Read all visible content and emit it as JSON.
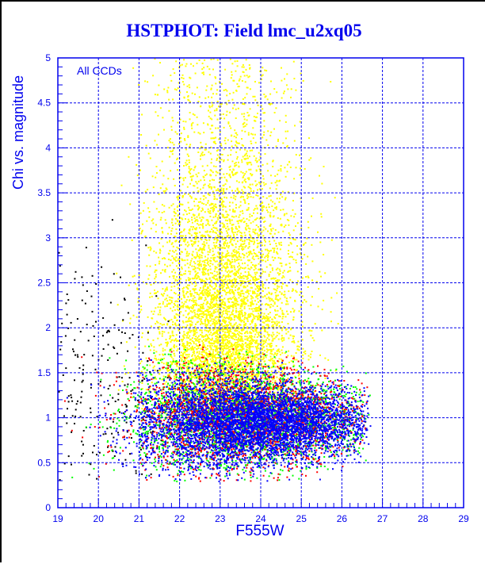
{
  "chart_data": {
    "type": "scatter",
    "title": "HSTPHOT: Field lmc_u2xq05",
    "xlabel": "F555W",
    "ylabel": "Chi vs. magnitude",
    "annotation": "All CCDs",
    "xlim": [
      19,
      29
    ],
    "ylim": [
      0,
      5
    ],
    "xticks": [
      "19",
      "20",
      "21",
      "22",
      "23",
      "24",
      "25",
      "26",
      "27",
      "28",
      "29"
    ],
    "yticks": [
      "0",
      "0.5",
      "1",
      "1.5",
      "2",
      "2.5",
      "3",
      "3.5",
      "4",
      "4.5",
      "5"
    ],
    "grid": true,
    "series": [
      {
        "name": "yellow",
        "color": "#ffff00",
        "count": 5500,
        "mag_mean": 23.1,
        "mag_sd": 0.9,
        "chi_mean": 2.3,
        "chi_sd": 0.9
      },
      {
        "name": "black",
        "color": "#000000",
        "count": 250,
        "mag_mean": 20.0,
        "mag_sd": 0.8,
        "chi_mean": 1.3,
        "chi_sd": 0.5
      },
      {
        "name": "green",
        "color": "#00ff00",
        "count": 2600,
        "mag_mean": 23.6,
        "mag_sd": 1.5,
        "chi_mean": 1.0,
        "chi_sd": 0.28
      },
      {
        "name": "red",
        "color": "#ff0000",
        "count": 2200,
        "mag_mean": 23.6,
        "mag_sd": 1.5,
        "chi_mean": 1.0,
        "chi_sd": 0.28
      },
      {
        "name": "blue",
        "color": "#0000ff",
        "count": 5000,
        "mag_mean": 23.8,
        "mag_sd": 1.4,
        "chi_mean": 0.95,
        "chi_sd": 0.22
      }
    ],
    "mag_limit": 26.5
  }
}
